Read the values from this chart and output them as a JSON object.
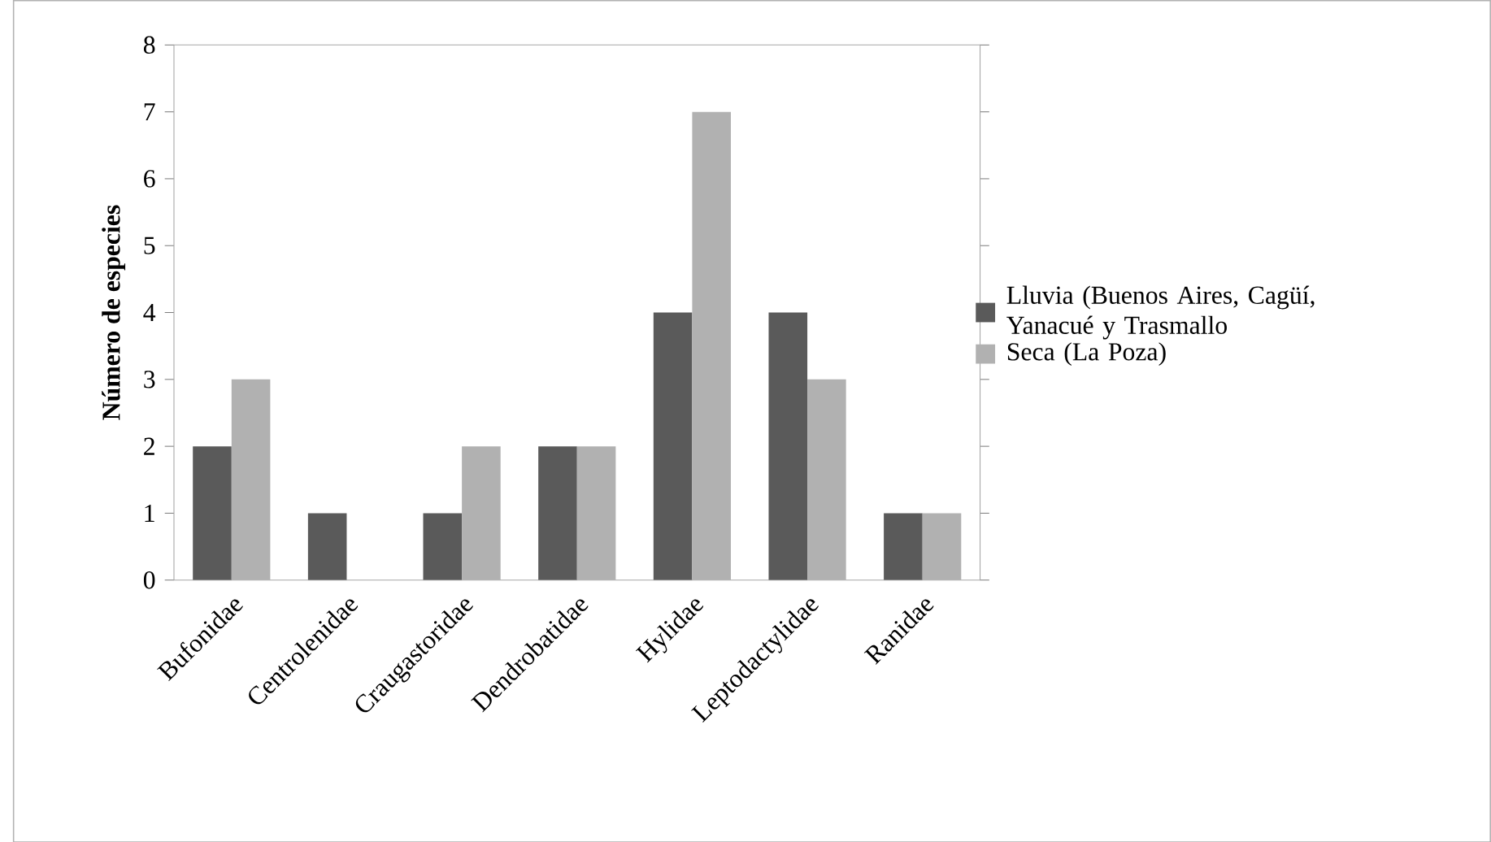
{
  "chart_data": {
    "type": "bar",
    "ylabel": "Número de especies",
    "categories": [
      "Bufonidae",
      "Centrolenidae",
      "Craugastoridae",
      "Dendrobatidae",
      "Hylidae",
      "Leptodactylidae",
      "Ranidae"
    ],
    "series": [
      {
        "name": "Lluvia (Buenos Aires, Cagüí, Yanacué y Trasmallo",
        "color": "#5a5a5a",
        "values": [
          2,
          1,
          1,
          2,
          4,
          4,
          1
        ]
      },
      {
        "name": "Seca (La Poza)",
        "color": "#b1b1b1",
        "values": [
          3,
          0,
          2,
          2,
          7,
          3,
          1
        ]
      }
    ],
    "ylim": [
      0,
      8
    ],
    "yticks": [
      0,
      1,
      2,
      3,
      4,
      5,
      6,
      7,
      8
    ],
    "legend": "right"
  }
}
